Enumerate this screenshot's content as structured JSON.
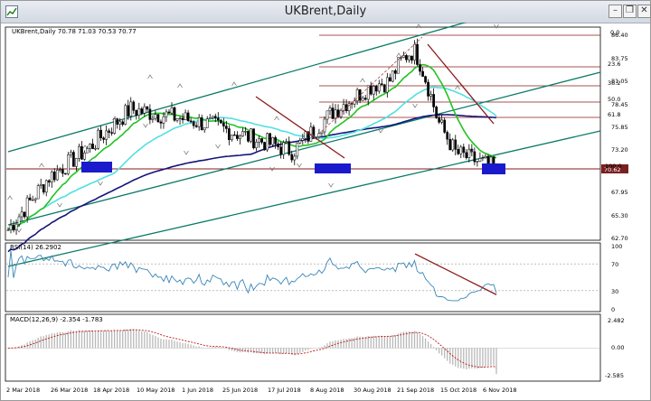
{
  "window": {
    "title": "UKBrent,Daily",
    "buttons": {
      "minimize": "–",
      "restore": "❐",
      "close": "✕"
    }
  },
  "main_panel": {
    "label": "UKBrent,Daily  70.78 71.03 70.53 70.77",
    "price_ticks": [
      "86.40",
      "83.75",
      "81.05",
      "78.45",
      "75.85",
      "73.20",
      "70.62",
      "67.95",
      "65.30",
      "62.70"
    ],
    "current_price": "70.62",
    "fib_levels": [
      "0.0",
      "23.6",
      "38.2",
      "50.0",
      "61.8",
      "100.0"
    ]
  },
  "rsi_panel": {
    "label": "RSI(14) 26.2902",
    "ticks": [
      "100",
      "70",
      "30",
      "0"
    ]
  },
  "macd_panel": {
    "label": "MACD(12,26,9) -2.354 -1.783",
    "ticks": [
      "2.482",
      "0.00",
      "-2.585"
    ]
  },
  "time_axis": {
    "labels": [
      "2 Mar 2018",
      "26 Mar 2018",
      "18 Apr 2018",
      "10 May 2018",
      "1 Jun 2018",
      "25 Jun 2018",
      "17 Jul 2018",
      "8 Aug 2018",
      "30 Aug 2018",
      "21 Sep 2018",
      "15 Oct 2018",
      "6 Nov 2018"
    ]
  },
  "colors": {
    "channel": "#0a7a68",
    "fib_lines": "#8b1a1a",
    "ma_green": "#22c322",
    "ma_cyan": "#4fe0e0",
    "ma_navy": "#15157a",
    "support_box": "#1a1acc",
    "rsi_line": "#3a86b8",
    "macd_signal": "#c01818"
  },
  "chart_data": {
    "type": "line",
    "symbol": "UKBrent",
    "timeframe": "Daily",
    "last_bar": {
      "open": 70.78,
      "high": 71.03,
      "low": 70.53,
      "close": 70.77
    },
    "dates": [
      "2 Mar 2018",
      "26 Mar 2018",
      "18 Apr 2018",
      "10 May 2018",
      "1 Jun 2018",
      "25 Jun 2018",
      "17 Jul 2018",
      "8 Aug 2018",
      "30 Aug 2018",
      "21 Sep 2018",
      "15 Oct 2018",
      "6 Nov 2018",
      "13 Nov 2018"
    ],
    "series": [
      {
        "name": "UKBrent",
        "values": [
          63.8,
          69.8,
          73.2,
          77.6,
          76.8,
          75.8,
          74.3,
          72.8,
          77.4,
          80.5,
          81.0,
          72.6,
          70.8
        ]
      }
    ],
    "ylim": [
      62.7,
      86.9
    ],
    "rsi": {
      "period": 14,
      "last": 26.2902,
      "ylim": [
        0,
        100
      ]
    },
    "macd": {
      "fast": 12,
      "slow": 26,
      "signal": 9,
      "main": -2.354,
      "signal_value": -1.783,
      "ylim": [
        -2.585,
        2.482
      ]
    }
  }
}
